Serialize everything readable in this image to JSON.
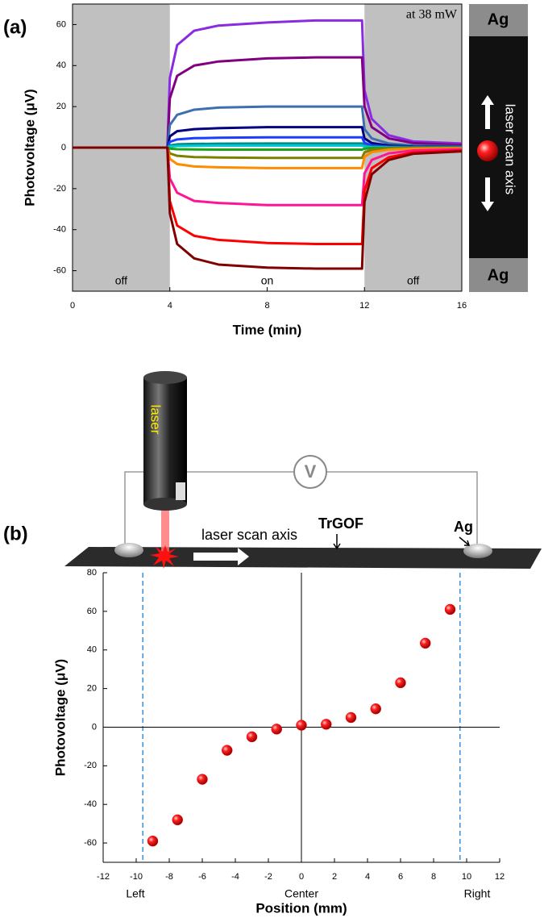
{
  "chart_data": [
    {
      "type": "line",
      "panel_label": "(a)",
      "annotation": "at 38 mW",
      "x_label": "Time (min)",
      "y_label": "Photovoltage (μV)",
      "regions": [
        {
          "span": [
            0,
            4
          ],
          "label": "off",
          "shaded": true
        },
        {
          "span": [
            4,
            12
          ],
          "label": "on",
          "shaded": false
        },
        {
          "span": [
            12,
            16
          ],
          "label": "off",
          "shaded": true
        }
      ],
      "inset": {
        "top": "Ag",
        "label": "laser scan axis",
        "bottom": "Ag"
      },
      "xlim": [
        0,
        16
      ],
      "xticks": [
        0,
        4,
        8,
        12,
        16
      ],
      "ylim": [
        -70,
        70
      ],
      "yticks": [
        -60,
        -40,
        -20,
        0,
        20,
        40,
        60
      ],
      "x": [
        0,
        2,
        3.9,
        4,
        4.3,
        5,
        6,
        8,
        10,
        11.9,
        12,
        12.3,
        13,
        14,
        16
      ],
      "series": [
        {
          "color": "#8a2be2",
          "values": [
            0,
            0,
            0,
            34,
            50,
            57,
            59.5,
            61,
            62,
            62,
            28,
            14,
            6,
            3,
            2
          ]
        },
        {
          "color": "#800080",
          "values": [
            0,
            0,
            0,
            24,
            35,
            40,
            42,
            43.5,
            44,
            44,
            20,
            10,
            4.5,
            2.2,
            1.3
          ]
        },
        {
          "color": "#3d6fb0",
          "values": [
            0,
            0,
            0,
            11,
            16,
            18.5,
            19.5,
            20,
            20,
            20,
            9,
            4.5,
            2,
            1,
            0.6
          ]
        },
        {
          "color": "#000080",
          "values": [
            0,
            0,
            0,
            5.5,
            8,
            9,
            9.5,
            10,
            10,
            10,
            4.5,
            2.2,
            1,
            0.5,
            0.3
          ]
        },
        {
          "color": "#1e3cff",
          "values": [
            0,
            0,
            0,
            2.8,
            4,
            4.6,
            4.8,
            5,
            5,
            5,
            2.3,
            1.1,
            0.5,
            0.3,
            0.2
          ]
        },
        {
          "color": "#008b8b",
          "values": [
            0,
            0,
            0,
            1.1,
            1.6,
            1.8,
            1.9,
            2,
            2,
            2,
            0.9,
            0.4,
            0.2,
            0.1,
            0.1
          ]
        },
        {
          "color": "#00c8d0",
          "values": [
            0,
            0,
            0,
            0.5,
            0.8,
            0.9,
            1,
            1,
            1,
            1,
            0.5,
            0.2,
            0.1,
            0,
            0
          ]
        },
        {
          "color": "#1aa31a",
          "values": [
            0,
            0,
            0,
            -0.5,
            -0.8,
            -0.9,
            -1,
            -1,
            -1,
            -1,
            -0.5,
            -0.2,
            -0.1,
            0,
            0
          ]
        },
        {
          "color": "#808000",
          "values": [
            0,
            0,
            0,
            -2.8,
            -4,
            -4.6,
            -4.8,
            -5,
            -5,
            -5,
            -2.3,
            -1.1,
            -0.5,
            -0.3,
            -0.2
          ]
        },
        {
          "color": "#ff8c00",
          "values": [
            0,
            0,
            0,
            -5.5,
            -8,
            -9.2,
            -9.6,
            -10,
            -10,
            -10,
            -4.5,
            -2.2,
            -1,
            -0.5,
            -0.3
          ]
        },
        {
          "color": "#ff1493",
          "values": [
            0,
            0,
            0,
            -15,
            -22,
            -26,
            -27,
            -28,
            -28,
            -28,
            -12.6,
            -6,
            -2.8,
            -1.4,
            -0.8
          ]
        },
        {
          "color": "#ff0000",
          "values": [
            0,
            0,
            0,
            -26,
            -38,
            -43,
            -45,
            -46.5,
            -47,
            -47,
            -21,
            -10,
            -4.7,
            -2.4,
            -1.4
          ]
        },
        {
          "color": "#800000",
          "values": [
            0,
            0,
            0,
            -32,
            -47,
            -54,
            -57,
            -58.5,
            -59,
            -59,
            -26.5,
            -13,
            -6,
            -3,
            -1.8
          ]
        }
      ]
    },
    {
      "type": "scatter",
      "panel_label": "(b)",
      "diagram": {
        "laser": "laser",
        "meter": "V",
        "scan": "laser scan axis",
        "film": "TrGOF",
        "electrode": "Ag"
      },
      "x_label": "Position (mm)",
      "y_label": "Photovoltage (μV)",
      "x_region_labels": [
        "Left",
        "Center",
        "Right"
      ],
      "xlim": [
        -12,
        12
      ],
      "xticks": [
        -12,
        -10,
        -8,
        -6,
        -4,
        -2,
        0,
        2,
        4,
        6,
        8,
        10,
        12
      ],
      "ylim": [
        -70,
        80
      ],
      "yticks": [
        -60,
        -40,
        -20,
        0,
        20,
        40,
        60,
        80
      ],
      "crosshair": {
        "x": 0,
        "y": 0
      },
      "ref_lines_x": [
        -9.6,
        9.6
      ],
      "color": "#ff0000",
      "x": [
        -9,
        -7.5,
        -6,
        -4.5,
        -3,
        -1.5,
        0,
        1.5,
        3,
        4.5,
        6,
        7.5,
        9
      ],
      "values": [
        -59,
        -48,
        -27,
        -12,
        -5,
        -1,
        1,
        1.5,
        5,
        9.5,
        23,
        43.5,
        61
      ]
    }
  ]
}
